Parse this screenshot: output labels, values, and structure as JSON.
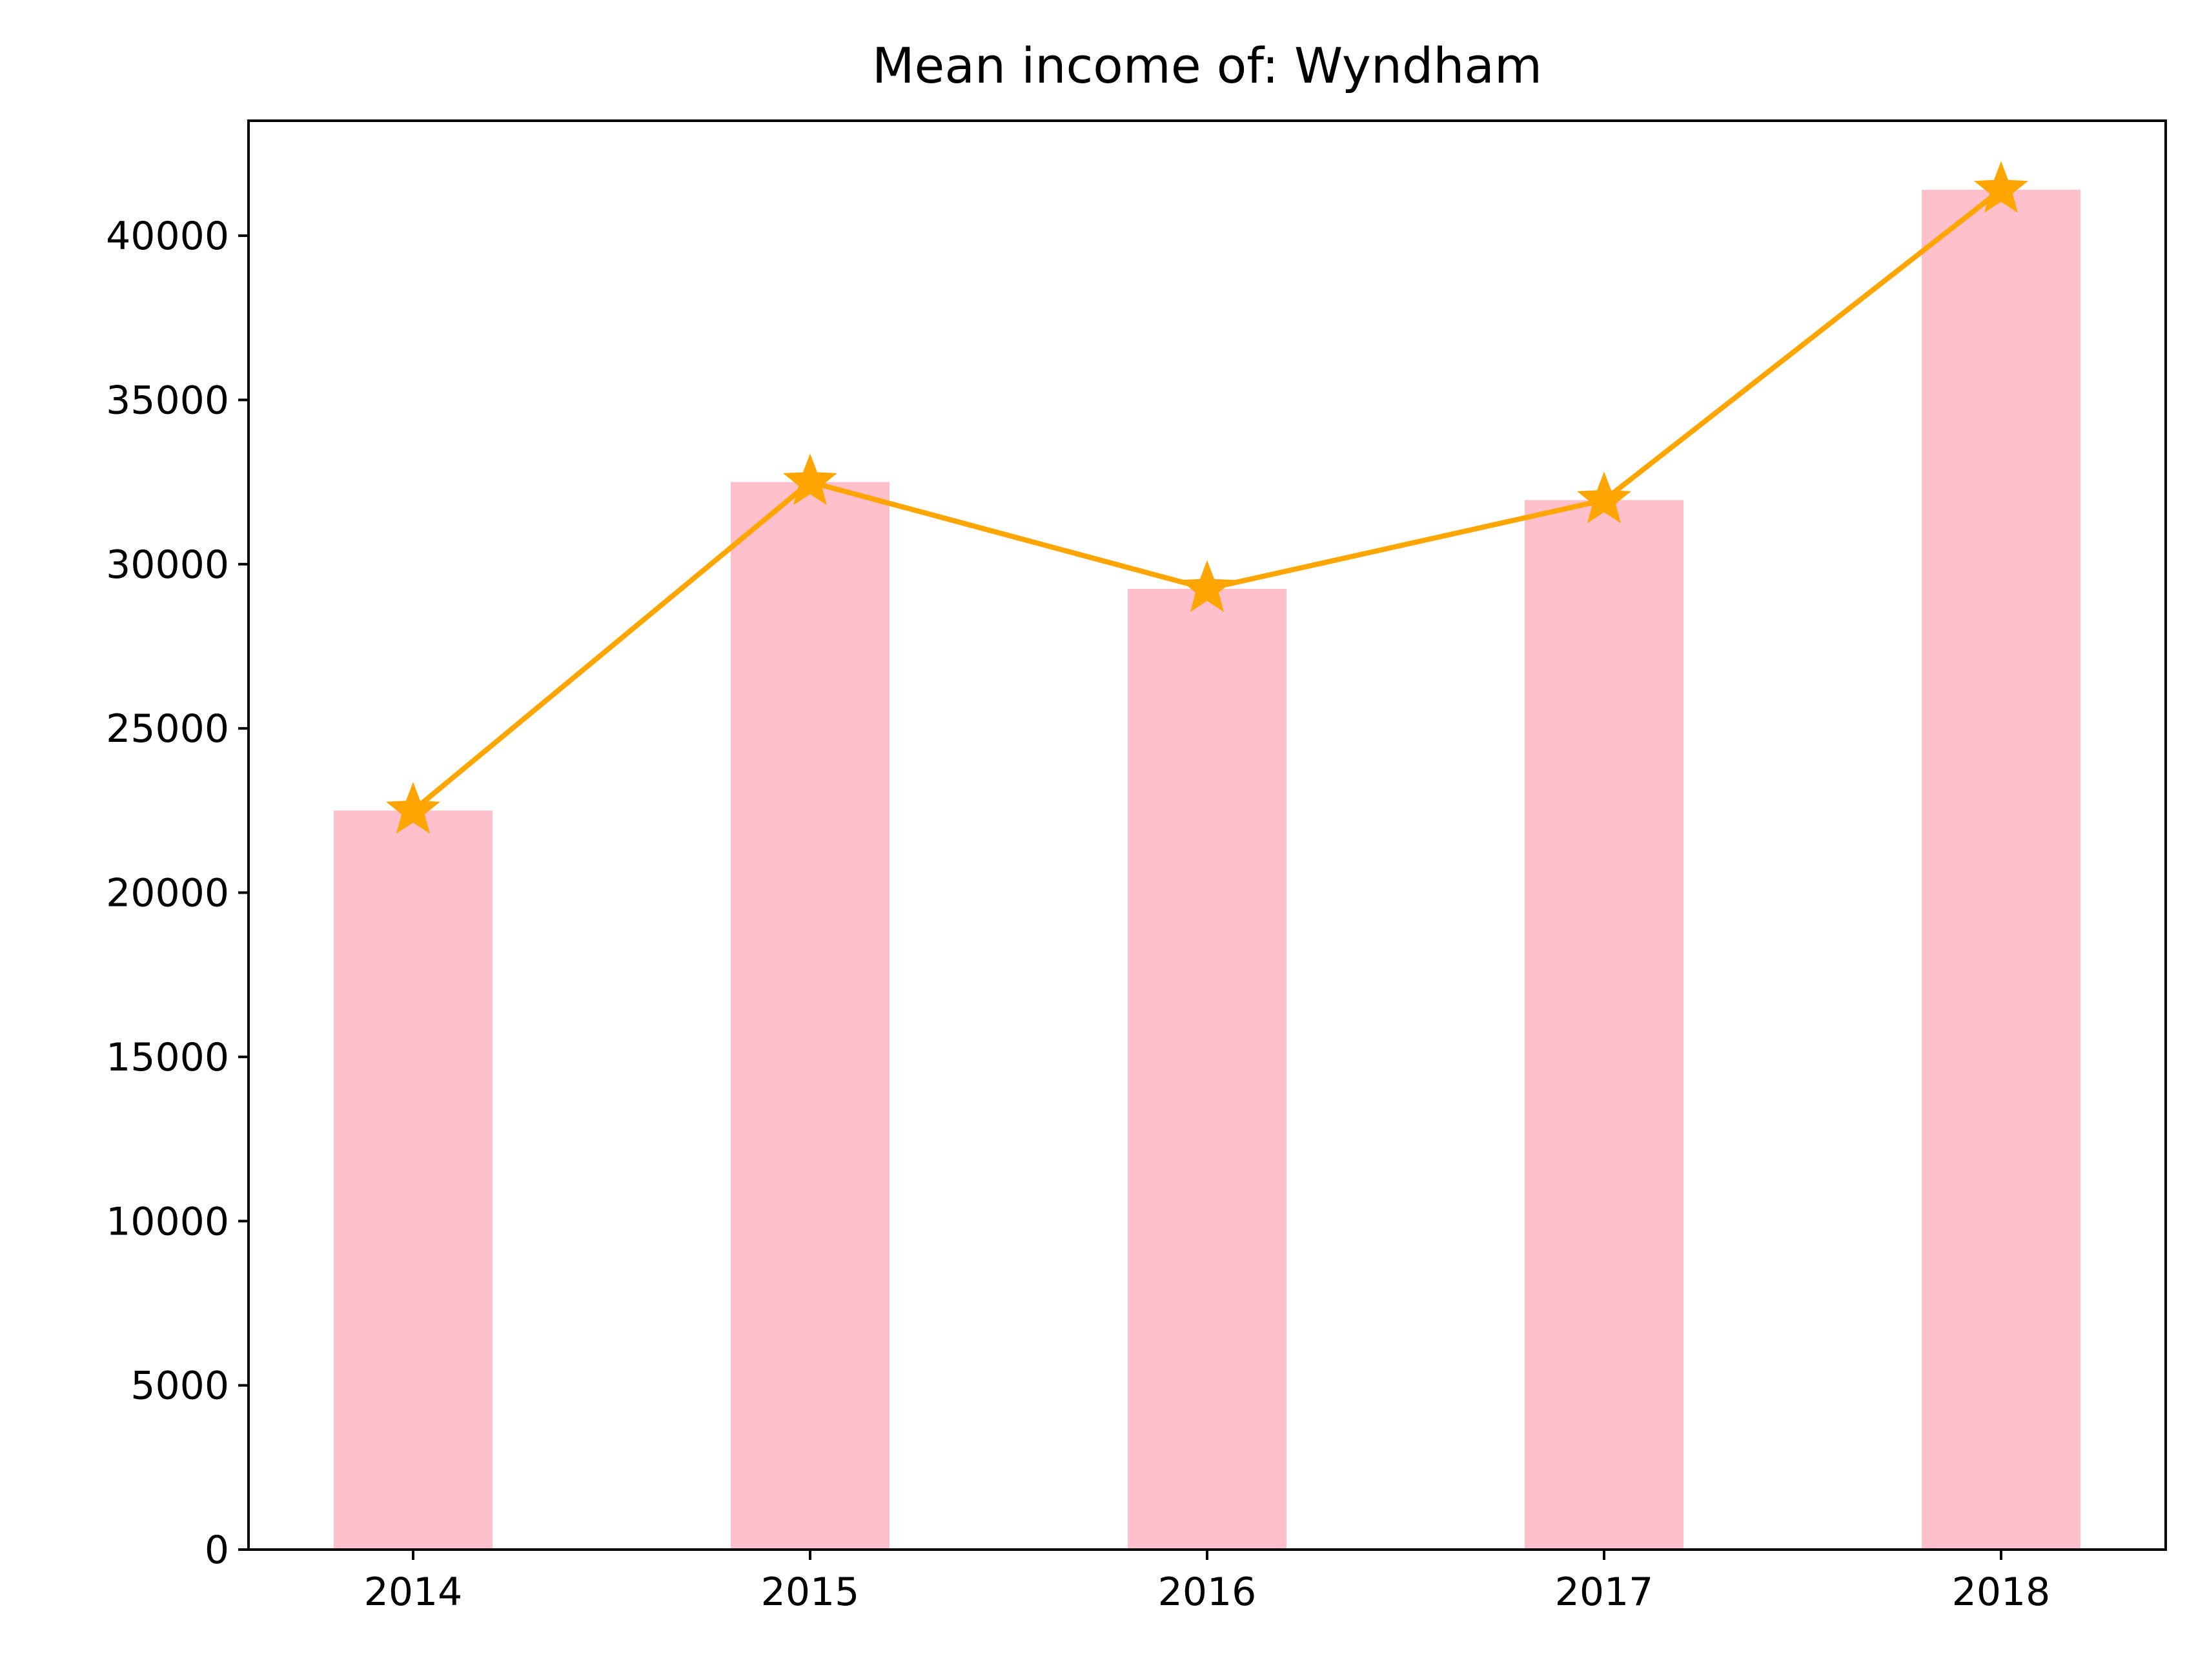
{
  "chart_data": {
    "type": "bar",
    "title": "Mean income of: Wyndham",
    "xlabel": "",
    "ylabel": "",
    "categories": [
      "2014",
      "2015",
      "2016",
      "2017",
      "2018"
    ],
    "series": [
      {
        "kind": "bar",
        "values": [
          22500,
          32500,
          29250,
          31950,
          41400
        ],
        "color": "#ffc0cb"
      },
      {
        "kind": "line",
        "marker": "star",
        "values": [
          22500,
          32500,
          29250,
          31950,
          41400
        ],
        "color": "#ffa500"
      }
    ],
    "ylim": [
      0,
      43500
    ],
    "yticks": [
      0,
      5000,
      10000,
      15000,
      20000,
      25000,
      30000,
      35000,
      40000
    ],
    "grid": false,
    "legend": "none"
  }
}
